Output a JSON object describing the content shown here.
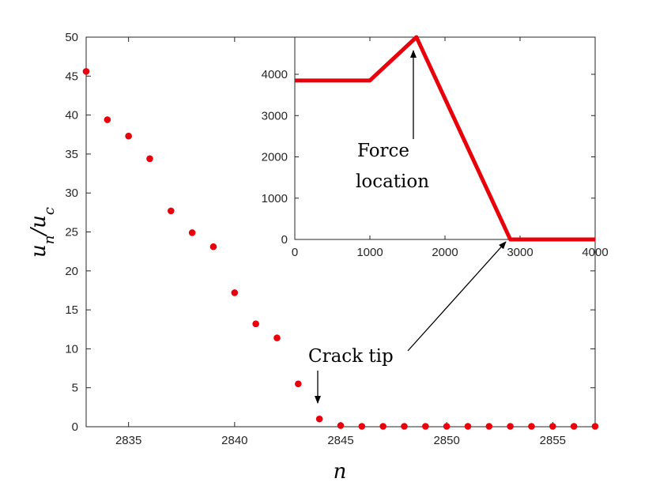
{
  "chart_data": [
    {
      "type": "scatter",
      "xlabel": "n",
      "ylabel": "u_n/u_c",
      "xlim": [
        2833,
        2857
      ],
      "ylim": [
        0,
        50
      ],
      "xticks": [
        2835,
        2840,
        2845,
        2850,
        2855
      ],
      "yticks": [
        0,
        5,
        10,
        15,
        20,
        25,
        30,
        35,
        40,
        45,
        50
      ],
      "color": "#e8000b",
      "series": [
        {
          "x": [
            2833,
            2834,
            2835,
            2836,
            2837,
            2838,
            2839,
            2840,
            2841,
            2842,
            2843,
            2844,
            2845,
            2846,
            2847,
            2848,
            2849,
            2850,
            2851,
            2852,
            2853,
            2854,
            2855,
            2856,
            2857
          ],
          "y": [
            45.6,
            39.4,
            37.3,
            34.4,
            27.7,
            24.9,
            23.1,
            17.2,
            13.2,
            11.4,
            5.5,
            1.0,
            0.15,
            0.05,
            0.05,
            0.05,
            0.05,
            0.05,
            0.05,
            0.05,
            0.05,
            0.05,
            0.05,
            0.05,
            0.05
          ]
        }
      ],
      "annotations": [
        {
          "text": "Crack tip",
          "points_to": [
            2844,
            1.0
          ]
        }
      ]
    },
    {
      "type": "line",
      "inset": true,
      "xlim": [
        0,
        4000
      ],
      "ylim": [
        0,
        4900
      ],
      "xticks": [
        0,
        1000,
        2000,
        3000,
        4000
      ],
      "yticks": [
        0,
        1000,
        2000,
        3000,
        4000
      ],
      "color": "#e8000b",
      "series": [
        {
          "x": [
            0,
            1000,
            1620,
            2870,
            4000
          ],
          "y": [
            3850,
            3850,
            4900,
            0,
            0
          ]
        }
      ],
      "annotations": [
        {
          "text": [
            "Force",
            "location"
          ],
          "points_to": [
            1620,
            4900
          ]
        }
      ]
    }
  ]
}
